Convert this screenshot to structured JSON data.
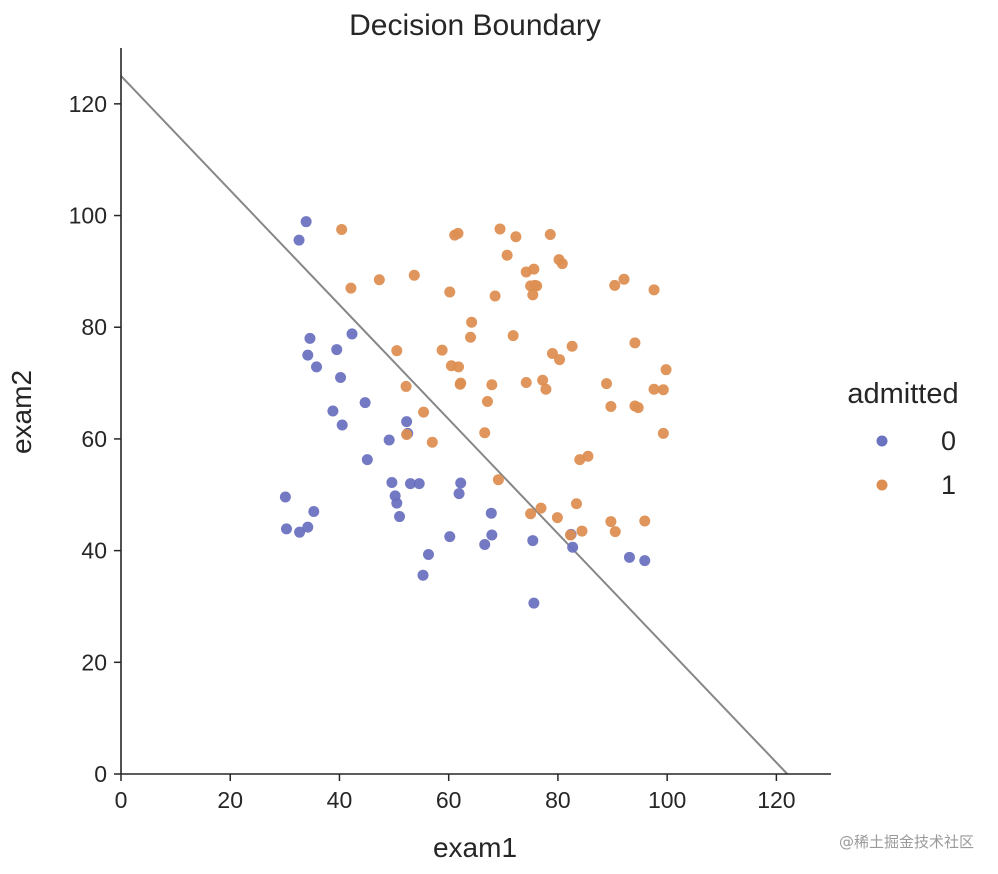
{
  "chart_data": {
    "type": "scatter",
    "title": "Decision Boundary",
    "xlabel": "exam1",
    "ylabel": "exam2",
    "xlim": [
      0,
      130
    ],
    "ylim": [
      0,
      130
    ],
    "xticks": [
      0,
      20,
      40,
      60,
      80,
      100,
      120
    ],
    "yticks": [
      0,
      20,
      40,
      60,
      80,
      100,
      120
    ],
    "grid": false,
    "legend": {
      "title": "admitted",
      "placement": "right"
    },
    "series": [
      {
        "name": "0",
        "color": "#6b72bf",
        "points": [
          [
            34.6,
            78.0
          ],
          [
            30.3,
            43.9
          ],
          [
            35.8,
            72.9
          ],
          [
            45.1,
            56.3
          ],
          [
            32.7,
            43.3
          ],
          [
            34.2,
            75.0
          ],
          [
            39.5,
            76.0
          ],
          [
            53.0,
            52.0
          ],
          [
            52.3,
            63.1
          ],
          [
            30.1,
            49.6
          ],
          [
            50.5,
            48.5
          ],
          [
            33.9,
            98.9
          ],
          [
            32.6,
            95.6
          ],
          [
            38.8,
            65.0
          ],
          [
            40.2,
            71.0
          ],
          [
            62.2,
            52.1
          ],
          [
            40.5,
            62.5
          ],
          [
            42.3,
            78.8
          ],
          [
            55.3,
            35.6
          ],
          [
            49.1,
            59.8
          ],
          [
            44.7,
            66.5
          ],
          [
            52.5,
            61.0
          ],
          [
            67.8,
            46.7
          ],
          [
            61.9,
            50.2
          ],
          [
            50.2,
            49.8
          ],
          [
            51.0,
            46.1
          ],
          [
            54.6,
            52.0
          ],
          [
            56.3,
            39.3
          ],
          [
            35.3,
            47.0
          ],
          [
            60.2,
            42.5
          ],
          [
            82.4,
            42.9
          ],
          [
            66.6,
            41.1
          ],
          [
            67.9,
            42.8
          ],
          [
            75.4,
            41.8
          ],
          [
            82.7,
            40.6
          ],
          [
            93.1,
            38.8
          ],
          [
            95.9,
            38.2
          ],
          [
            75.6,
            30.6
          ],
          [
            34.2,
            44.2
          ],
          [
            49.6,
            52.2
          ]
        ]
      },
      {
        "name": "1",
        "color": "#dd8f52",
        "points": [
          [
            60.2,
            86.3
          ],
          [
            79.0,
            75.3
          ],
          [
            61.1,
            96.5
          ],
          [
            75.0,
            46.6
          ],
          [
            76.1,
            87.4
          ],
          [
            84.4,
            43.5
          ],
          [
            95.9,
            45.3
          ],
          [
            75.0,
            87.4
          ],
          [
            80.3,
            74.2
          ],
          [
            82.6,
            76.6
          ],
          [
            69.1,
            52.7
          ],
          [
            70.7,
            92.9
          ],
          [
            76.9,
            47.6
          ],
          [
            67.9,
            69.7
          ],
          [
            89.7,
            65.8
          ],
          [
            90.4,
            87.5
          ],
          [
            61.8,
            72.9
          ],
          [
            99.3,
            68.8
          ],
          [
            97.6,
            86.7
          ],
          [
            74.2,
            89.9
          ],
          [
            71.8,
            78.5
          ],
          [
            75.4,
            85.8
          ],
          [
            83.4,
            48.4
          ],
          [
            89.7,
            45.2
          ],
          [
            99.8,
            72.4
          ],
          [
            52.2,
            69.4
          ],
          [
            94.1,
            77.2
          ],
          [
            90.5,
            43.4
          ],
          [
            61.7,
            96.8
          ],
          [
            64.2,
            80.9
          ],
          [
            72.3,
            96.2
          ],
          [
            60.5,
            73.1
          ],
          [
            58.8,
            75.9
          ],
          [
            99.3,
            61.0
          ],
          [
            47.3,
            88.5
          ],
          [
            50.5,
            75.8
          ],
          [
            97.6,
            68.9
          ],
          [
            80.2,
            92.1
          ],
          [
            68.5,
            85.6
          ],
          [
            42.1,
            87.0
          ],
          [
            75.6,
            90.4
          ],
          [
            78.6,
            96.6
          ],
          [
            52.3,
            60.8
          ],
          [
            94.1,
            65.9
          ],
          [
            62.2,
            70.0
          ],
          [
            77.2,
            70.5
          ],
          [
            62.1,
            69.8
          ],
          [
            69.4,
            97.6
          ],
          [
            82.3,
            42.8
          ],
          [
            79.9,
            45.9
          ],
          [
            84.0,
            56.3
          ],
          [
            85.5,
            56.9
          ],
          [
            40.4,
            97.5
          ],
          [
            66.6,
            61.1
          ],
          [
            55.4,
            64.8
          ],
          [
            57.0,
            59.4
          ],
          [
            53.7,
            89.3
          ],
          [
            88.9,
            69.9
          ],
          [
            94.7,
            65.6
          ],
          [
            67.1,
            66.7
          ],
          [
            74.2,
            70.1
          ],
          [
            80.8,
            91.4
          ],
          [
            92.1,
            88.6
          ],
          [
            77.8,
            68.9
          ],
          [
            64.0,
            78.2
          ],
          [
            75.8,
            87.5
          ]
        ]
      }
    ],
    "boundary": {
      "points": [
        [
          0,
          125.0
        ],
        [
          122.0,
          0
        ]
      ],
      "color": "#878787"
    }
  }
}
